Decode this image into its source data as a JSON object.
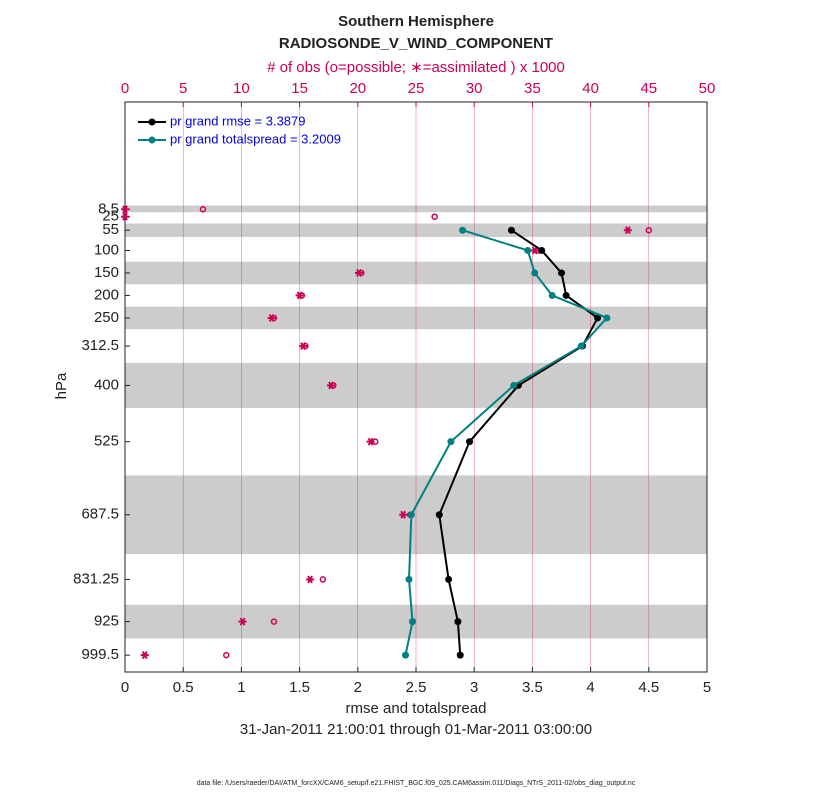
{
  "chart_data": {
    "type": "line",
    "title": "Southern Hemisphere",
    "subtitle": "RADIOSONDE_V_WIND_COMPONENT",
    "top_axis_label": "# of obs (o=possible; ∗=assimilated ) x 1000",
    "x_label": "rmse and totalspread",
    "y_label": "hPa",
    "date_range": "31-Jan-2011 21:00:01 through 01-Mar-2011 03:00:00",
    "footnote": "data file: /Users/raeder/DAI/ATM_forcXX/CAM6_setup/f.e21.FHIST_BGC.f09_025.CAM6assim.011/Diags_NTrS_2011-02/obs_diag_output.nc",
    "y": [
      8.5,
      25,
      55,
      100,
      150,
      200,
      250,
      312.5,
      400,
      525,
      687.5,
      831.25,
      925,
      999.5
    ],
    "series": [
      {
        "name": "pr grand rmse = 3.3879",
        "color": "#000000",
        "values": [
          null,
          null,
          3.32,
          3.58,
          3.75,
          3.79,
          4.06,
          3.93,
          3.38,
          2.96,
          2.7,
          2.78,
          2.86,
          2.88
        ]
      },
      {
        "name": "pr grand totalspread = 3.2009",
        "color": "#008080",
        "values": [
          null,
          null,
          2.9,
          3.46,
          3.52,
          3.67,
          4.14,
          3.92,
          3.34,
          2.8,
          2.46,
          2.44,
          2.47,
          2.41
        ]
      }
    ],
    "obs_series": [
      {
        "marker": "o",
        "color": "#cc0055",
        "values": [
          6.7,
          26.6,
          45.0,
          35.5,
          20.3,
          15.2,
          12.8,
          15.5,
          17.9,
          21.5,
          24.5,
          17.0,
          12.8,
          8.7
        ]
      },
      {
        "marker": "*",
        "color": "#cc0055",
        "values": [
          0,
          0,
          43.2,
          35.2,
          20.1,
          15.0,
          12.6,
          15.3,
          17.7,
          21.1,
          23.9,
          15.9,
          10.1,
          1.7
        ]
      }
    ],
    "shaded_layers": [
      [
        0,
        15
      ],
      [
        40,
        70
      ],
      [
        125,
        175
      ],
      [
        225,
        275
      ],
      [
        350,
        450
      ],
      [
        600,
        775
      ],
      [
        887.5,
        962.5
      ]
    ],
    "shade_color": "#cccccc",
    "xlim": [
      0,
      5
    ],
    "xticks": [
      0,
      0.5,
      1,
      1.5,
      2,
      2.5,
      3,
      3.5,
      4,
      4.5,
      5
    ],
    "x2lim": [
      0,
      50
    ],
    "x2ticks": [
      0,
      5,
      10,
      15,
      20,
      25,
      30,
      35,
      40,
      45,
      50
    ],
    "top_axis_color": "#cc0055",
    "ylim": [
      -230,
      1037
    ],
    "y_reversed": true,
    "yticks": [
      8.5,
      25,
      55,
      100,
      150,
      200,
      250,
      312.5,
      400,
      525,
      687.5,
      831.25,
      925,
      999.5
    ],
    "grid": true
  }
}
